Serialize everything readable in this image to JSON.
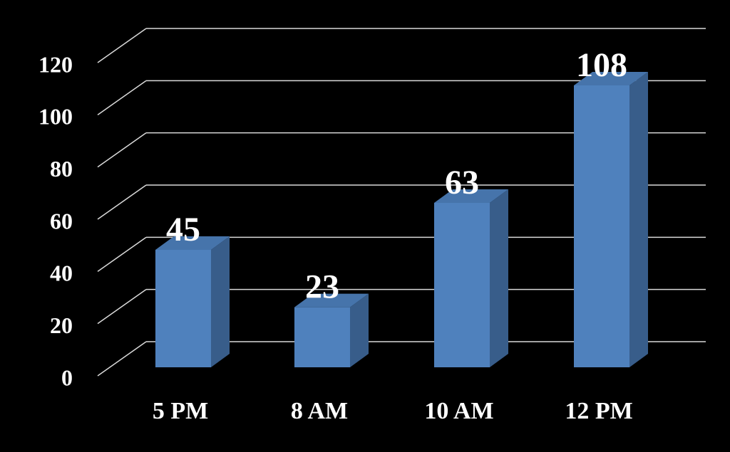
{
  "chart_data": {
    "type": "bar3d",
    "categories": [
      "5 PM",
      "8 AM",
      "10 AM",
      "12 PM"
    ],
    "values": [
      45,
      23,
      63,
      108
    ],
    "color": "#4f81bd",
    "ylim": [
      0,
      120
    ],
    "yticks": [
      0,
      20,
      40,
      60,
      80,
      100,
      120
    ],
    "grid": true
  }
}
